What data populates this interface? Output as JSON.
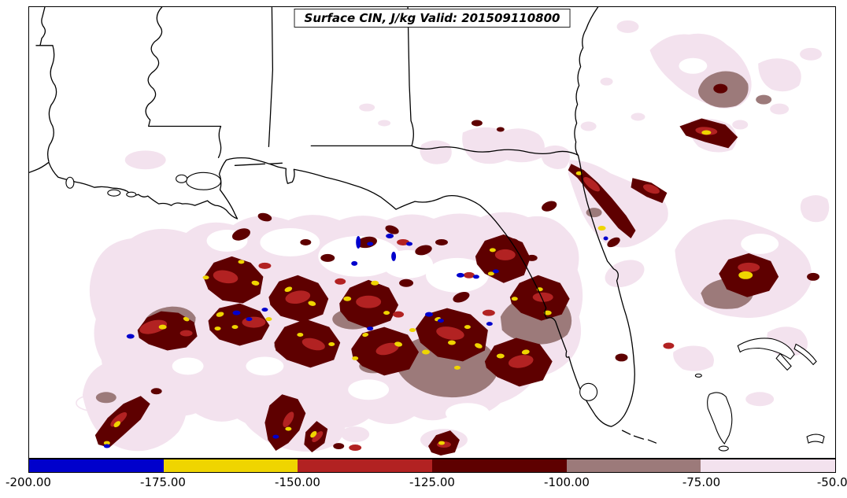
{
  "figure": {
    "title": "Surface CIN, J/kg Valid: 201509110800"
  },
  "palette": {
    "cin-blue": "#0000CC",
    "cin-yellow": "#EFD500",
    "cin-brick": "#B22222",
    "cin-maroon": "#5E0000",
    "cin-mauve": "#9C7A7A",
    "cin-pink": "#F3E2EE",
    "coastline": "#000000",
    "background": "#FFFFFF"
  },
  "colorbar": {
    "colors": [
      "#0000CC",
      "#EFD500",
      "#B22222",
      "#5E0000",
      "#9C7A7A",
      "#F3E2EE"
    ],
    "tick_labels": [
      "-200.00",
      "-175.00",
      "-150.00",
      "-125.00",
      "-100.00",
      "-75.00",
      "-50.00"
    ]
  },
  "chart_data": {
    "type": "heatmap",
    "title": "Surface CIN, J/kg Valid: 201509110800",
    "variable": "Surface CIN",
    "units": "J/kg",
    "valid": "201509110800",
    "colorbar_levels": [
      -200,
      -175,
      -150,
      -125,
      -100,
      -75,
      -50
    ],
    "colorbar_colors": [
      "#0000CC",
      "#EFD500",
      "#B22222",
      "#5E0000",
      "#9C7A7A",
      "#F3E2EE"
    ]
  }
}
